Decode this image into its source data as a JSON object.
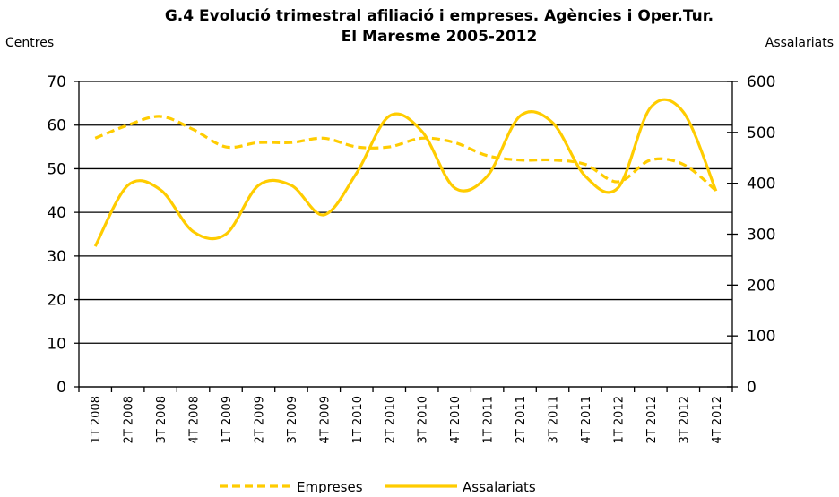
{
  "chart_data": {
    "type": "line",
    "title": "G.4 Evolució trimestral afiliació i empreses. Agències i Oper.Tur.",
    "subtitle": "El Maresme 2005-2012",
    "ylabel": "Centres",
    "y2label": "Assalariats",
    "categories": [
      "1T 2008",
      "2T 2008",
      "3T 2008",
      "4T 2008",
      "1T 2009",
      "2T 2009",
      "3T 2009",
      "4T 2009",
      "1T 2010",
      "2T 2010",
      "3T 2010",
      "4T 2010",
      "1T 2011",
      "2T 2011",
      "3T 2011",
      "4T 2011",
      "1T 2012",
      "2T 2012",
      "3T 2012",
      "4T 2012"
    ],
    "series": [
      {
        "name": "Empreses",
        "color": "#ffcc00",
        "dash": true,
        "axis": "y",
        "values": [
          57,
          60,
          62,
          59,
          55,
          56,
          56,
          57,
          55,
          55,
          57,
          56,
          53,
          52,
          52,
          51,
          47,
          52,
          51,
          45
        ]
      },
      {
        "name": "Assalariats",
        "color": "#ffcc00",
        "dash": false,
        "axis": "y2",
        "values": [
          276,
          396,
          387,
          305,
          300,
          396,
          396,
          338,
          420,
          532,
          502,
          391,
          414,
          532,
          519,
          414,
          391,
          549,
          540,
          385
        ]
      }
    ],
    "ylim": [
      0,
      70
    ],
    "yticks": [
      0,
      10,
      20,
      30,
      40,
      50,
      60,
      70
    ],
    "y2lim": [
      0,
      600
    ],
    "y2ticks": [
      0,
      100,
      200,
      300,
      400,
      500,
      600
    ],
    "grid": true,
    "legend": "bottom"
  }
}
